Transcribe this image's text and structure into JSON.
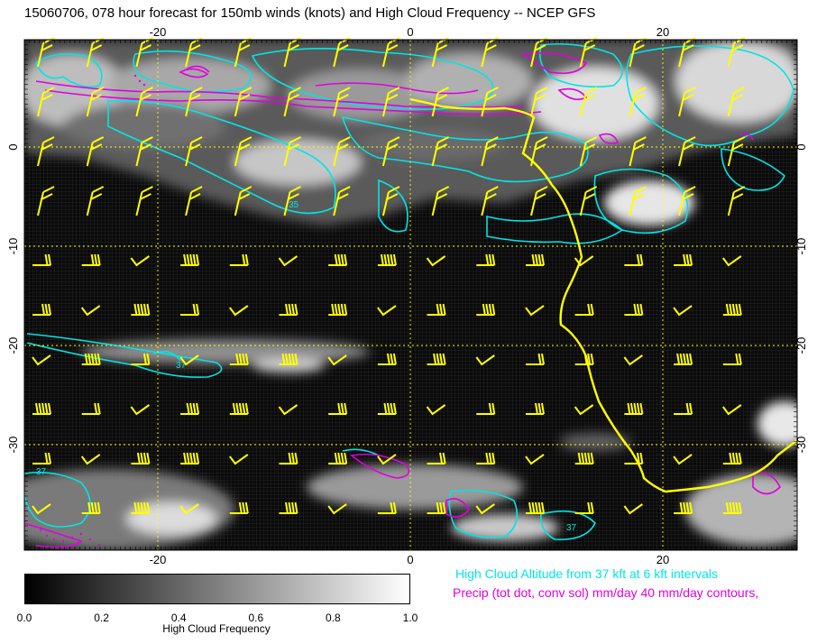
{
  "title": "15060706, 078 hour forecast for 150mb winds (knots) and High Cloud Frequency -- NCEP GFS",
  "axes": {
    "lon_ticks": [
      "-20",
      "0",
      "20"
    ],
    "lat_ticks": [
      "0",
      "-10",
      "-20",
      "-30"
    ]
  },
  "contour_labels": [
    "35",
    "37",
    "37",
    "37"
  ],
  "captions": {
    "high_cloud": "High Cloud Altitude from 37 kft at 6 kft intervals",
    "precip": "Precip (tot dot, conv sol) mm/day 40 mm/day contours,"
  },
  "colorbar": {
    "ticks": [
      "0.0",
      "0.2",
      "0.4",
      "0.6",
      "0.8",
      "1.0"
    ],
    "label": "High Cloud Frequency"
  },
  "colors": {
    "wind_barbs": "#ffff00",
    "high_cloud_contours": "#00e5e5",
    "precip_contours": "#e000e0",
    "coastline": "#ffff00",
    "grid": "#ffff00"
  }
}
